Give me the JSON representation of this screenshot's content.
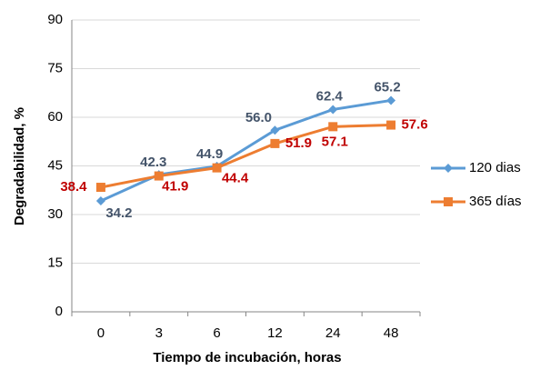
{
  "chart_data": {
    "type": "line",
    "x_label": "Tiempo de incubación, horas",
    "y_label": "Degradabilidad, %",
    "categories": [
      "0",
      "3",
      "6",
      "12",
      "24",
      "48"
    ],
    "series": [
      {
        "name": "120 dias",
        "color": "#5b9bd5",
        "label_color": "#44546a",
        "marker": "diamond",
        "values": [
          34.2,
          42.3,
          44.9,
          56.0,
          62.4,
          65.2
        ],
        "value_labels": [
          "34.2",
          "42.3",
          "44.9",
          "56.0",
          "62.4",
          "65.2"
        ]
      },
      {
        "name": "365 días",
        "color": "#ed7d31",
        "label_color": "#c00000",
        "marker": "square",
        "values": [
          38.4,
          41.9,
          44.4,
          51.9,
          57.1,
          57.6
        ],
        "value_labels": [
          "38.4",
          "41.9",
          "44.4",
          "51.9",
          "57.1",
          "57.6"
        ]
      }
    ],
    "ylim": [
      0,
      90
    ],
    "yticks": [
      0,
      15,
      30,
      45,
      60,
      75,
      90
    ],
    "grid": true,
    "legend": "right"
  }
}
